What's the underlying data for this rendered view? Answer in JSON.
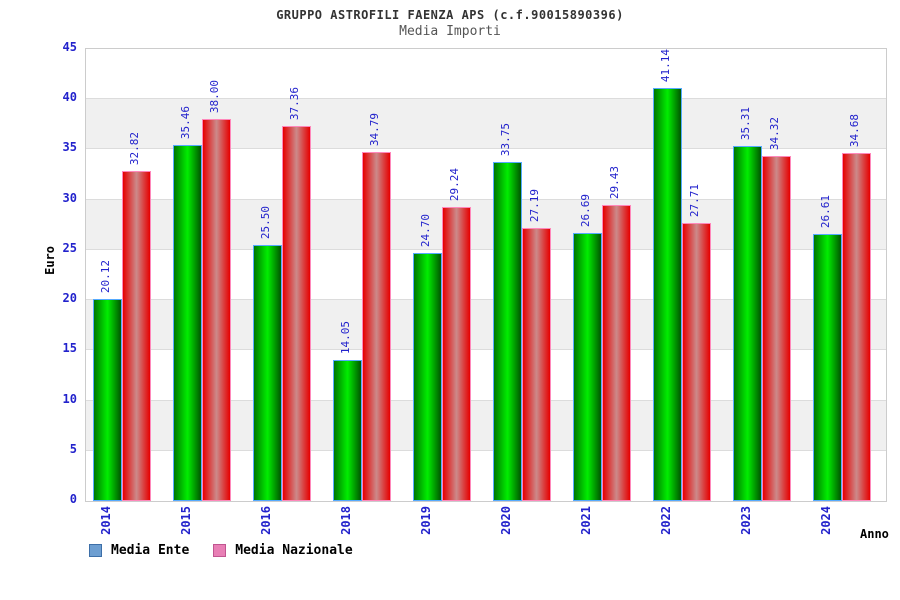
{
  "chart_data": {
    "type": "bar",
    "title": "GRUPPO ASTROFILI FAENZA APS (c.f.90015890396)",
    "subtitle": "Media Importi",
    "xlabel": "Anno",
    "ylabel": "Euro",
    "categories": [
      "2014",
      "2015",
      "2016",
      "2018",
      "2019",
      "2020",
      "2021",
      "2022",
      "2023",
      "2024"
    ],
    "series": [
      {
        "name": "Media Ente",
        "values": [
          20.12,
          35.46,
          25.5,
          14.05,
          24.7,
          33.75,
          26.69,
          41.14,
          35.31,
          26.61
        ],
        "bar_gradient": [
          "#007700",
          "#00EE00",
          "#005500"
        ],
        "bar_border": "#55AAFF",
        "legend_fill": "#6D9ED1",
        "legend_border": "#3D6FA8"
      },
      {
        "name": "Media Nazionale",
        "values": [
          32.82,
          38.0,
          37.36,
          34.79,
          29.24,
          27.19,
          29.43,
          27.71,
          34.32,
          34.68
        ],
        "bar_gradient": [
          "#E60000",
          "#CC8A8A",
          "#E60000"
        ],
        "bar_border": "#FF88BB",
        "legend_fill": "#E87FB5",
        "legend_border": "#C05590"
      }
    ],
    "ylim": [
      0,
      45
    ],
    "ytick_step": 5,
    "yticks": [
      0,
      5,
      10,
      15,
      20,
      25,
      30,
      35,
      40,
      45
    ],
    "grid": "horizontal gridlines with alternating shaded bands",
    "legend_position": "bottom-left",
    "colors": {
      "tick_label": "#2222CC",
      "value_label": "#2222CC",
      "band_gray": "#F0F0F0",
      "band_white": "#FFFFFF",
      "gridline": "#DCDCDC",
      "plot_border": "#CCCCCC"
    }
  }
}
